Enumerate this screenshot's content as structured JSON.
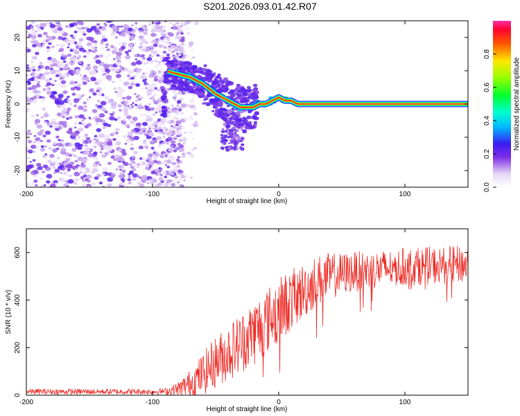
{
  "figure_title": "S201.2026.093.01.42.R07",
  "colors": {
    "snr_line": "#ee2a24",
    "ridge": "#ff1a1a"
  },
  "chart_data": [
    {
      "type": "heatmap",
      "title": "",
      "xlabel": "Height of straight line (km)",
      "ylabel": "Frequency (Hz)",
      "xlim": [
        -200,
        150
      ],
      "ylim": [
        -25,
        25
      ],
      "xticks": [
        -200,
        -100,
        0,
        100
      ],
      "yticks": [
        20,
        10,
        0,
        -10,
        -20
      ],
      "colorbar": {
        "label": "Normalized spectral amplitude",
        "range": [
          0,
          1
        ],
        "ticks": [
          0.0,
          0.2,
          0.4,
          0.6,
          0.8
        ]
      },
      "ridge": {
        "description_points_x": [
          -90,
          -80,
          -70,
          -60,
          -50,
          -40,
          -30,
          -25,
          -20,
          -15,
          -10,
          -5,
          0,
          5,
          10,
          15,
          150
        ],
        "description_points_y": [
          10,
          9,
          8,
          6,
          3,
          1,
          -1,
          -1,
          -1,
          0,
          0,
          1,
          2,
          1,
          1,
          0,
          0
        ]
      }
    },
    {
      "type": "line",
      "title": "",
      "xlabel": "Height of straight line (km)",
      "ylabel": "SNR (10 * v/v)",
      "xlim": [
        -200,
        150
      ],
      "ylim": [
        0,
        700
      ],
      "xticks": [
        -200,
        -100,
        0,
        100
      ],
      "yticks": [
        0,
        200,
        400,
        600
      ],
      "envelope": {
        "x": [
          -200,
          -100,
          -90,
          -80,
          -70,
          -60,
          -50,
          -40,
          -30,
          -20,
          -10,
          0,
          10,
          20,
          30,
          40,
          50,
          60,
          80,
          100,
          120,
          150
        ],
        "mean": [
          15,
          15,
          16,
          25,
          50,
          90,
          140,
          180,
          220,
          260,
          310,
          360,
          400,
          440,
          480,
          500,
          510,
          520,
          530,
          540,
          545,
          550
        ],
        "spread": [
          12,
          12,
          14,
          30,
          60,
          90,
          110,
          120,
          130,
          140,
          140,
          140,
          130,
          120,
          110,
          100,
          90,
          85,
          80,
          80,
          80,
          80
        ]
      }
    }
  ]
}
